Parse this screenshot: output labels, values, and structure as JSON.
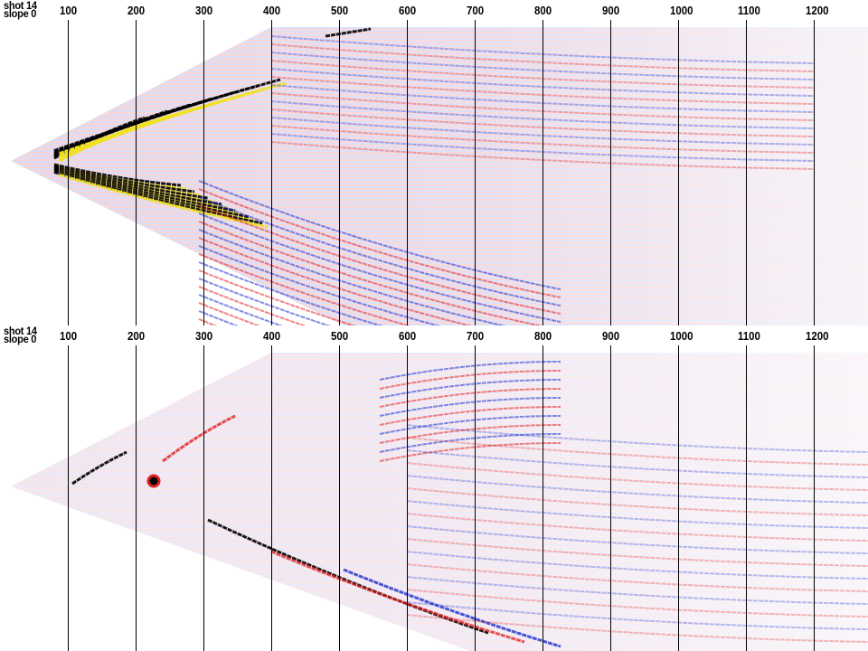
{
  "panels": [
    {
      "id": "top",
      "header": {
        "shot": "shot 14",
        "slope": "slope 0"
      },
      "offset_ticks": [
        "100",
        "200",
        "300",
        "400",
        "500",
        "600",
        "700",
        "800",
        "900",
        "1000",
        "1100",
        "1200"
      ]
    },
    {
      "id": "bottom",
      "header": {
        "shot": "shot 14",
        "slope": "slope 0"
      },
      "offset_ticks": [
        "100",
        "200",
        "300",
        "400",
        "500",
        "600",
        "700",
        "800",
        "900",
        "1000",
        "1100",
        "1200"
      ]
    }
  ],
  "colors": {
    "positive": "#e02020",
    "negative": "#1a2fd0",
    "strong_positive": "#f0e020",
    "strong_negative": "#000000",
    "background": "#ffffff",
    "gridline": "#000000"
  }
}
